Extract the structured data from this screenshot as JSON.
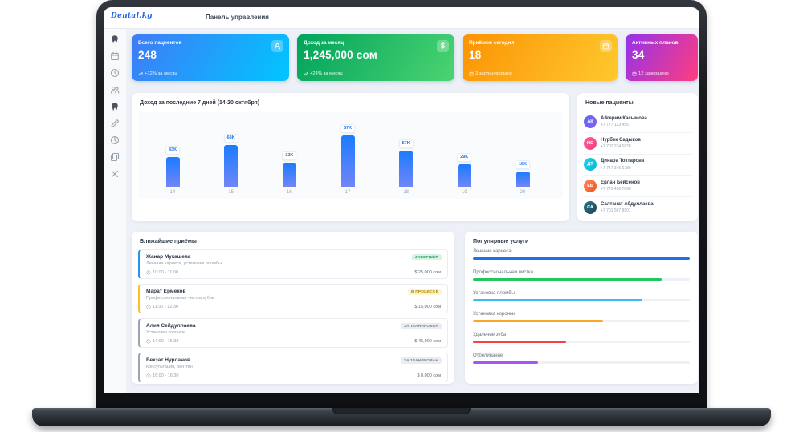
{
  "header": {
    "logo": "Dental.kg",
    "title": "Панель управления"
  },
  "sidebar": {
    "icons": [
      {
        "glyph": "tooth",
        "active": true
      },
      {
        "glyph": "calendar",
        "active": false
      },
      {
        "glyph": "clock",
        "active": false
      },
      {
        "glyph": "users",
        "active": false
      },
      {
        "glyph": "tooth",
        "active": true
      },
      {
        "glyph": "pen",
        "active": false
      },
      {
        "glyph": "pie-chart",
        "active": false
      },
      {
        "glyph": "copy",
        "active": false
      },
      {
        "glyph": "close",
        "active": false
      }
    ]
  },
  "stats": [
    {
      "label": "Всего пациентов",
      "value": "248",
      "delta": "+12% за месяц",
      "delta_icon": "trend-up",
      "icon": "person",
      "gradient": [
        "#3f7bf6",
        "#00c6ff"
      ]
    },
    {
      "label": "Доход за месяц",
      "value": "1,245,000 сом",
      "delta": "+24% за месяц",
      "delta_icon": "trend-up",
      "icon": "dollar",
      "gradient": [
        "#00a35c",
        "#4cd471"
      ]
    },
    {
      "label": "Приёмов сегодня",
      "value": "18",
      "delta": "3 запланировано",
      "delta_icon": "calendar",
      "icon": "calendar",
      "gradient": [
        "#fb9304",
        "#ffc92e"
      ]
    },
    {
      "label": "Активных планов",
      "value": "34",
      "delta": "12 завершено",
      "delta_icon": "calendar",
      "icon": null,
      "gradient": [
        "#9333ea",
        "#ff3d7f"
      ]
    }
  ],
  "chart_data": {
    "type": "bar",
    "title": "Доход за последние 7 дней (14-20 октября)",
    "categories": [
      "14",
      "15",
      "16",
      "17",
      "18",
      "19",
      "20"
    ],
    "values": [
      43000,
      68000,
      32000,
      87000,
      57000,
      29000,
      15000
    ],
    "labels": [
      "43K",
      "68K",
      "32K",
      "87K",
      "57K",
      "29K",
      "15K"
    ],
    "xlabel": "",
    "ylabel": "",
    "ylim": [
      0,
      87000
    ],
    "grid": false,
    "legend": false,
    "bar_color": "#1b7bff"
  },
  "patients": {
    "title": "Новые пациенты",
    "items": [
      {
        "initials": "АК",
        "name": "Айгерим Касымова",
        "phone": "+7 777 123 4567",
        "color1": "#5b6cf0",
        "color2": "#8a5cf6"
      },
      {
        "initials": "НС",
        "name": "Нурбек Садыков",
        "phone": "+7 707 234 5678",
        "color1": "#ff5e9c",
        "color2": "#f43f7f"
      },
      {
        "initials": "ДТ",
        "name": "Динара Токтарова",
        "phone": "+7 747 345 6789",
        "color1": "#22d3ee",
        "color2": "#06b6d4"
      },
      {
        "initials": "ЕБ",
        "name": "Ерлан Бейсенов",
        "phone": "+7 775 456 7890",
        "color1": "#ff8a5c",
        "color2": "#f4511e"
      },
      {
        "initials": "СА",
        "name": "Салтанат Абдуллаева",
        "phone": "+7 701 567 8901",
        "color1": "#1f7a8c",
        "color2": "#2c3e50"
      }
    ]
  },
  "appointments": {
    "title": "Ближайшие приёмы",
    "items": [
      {
        "name": "Жанар Мукашева",
        "service": "Лечение кариеса, установка пломбы",
        "time": "10:00 - 11:00",
        "price": "$ 25,000 сом",
        "status": "ЗАВЕРШЁН",
        "status_type": "done",
        "accent": "#2196f3"
      },
      {
        "name": "Марат Ермеков",
        "service": "Профессиональная чистка зубов",
        "time": "11:30 - 12:30",
        "price": "$ 15,000 сом",
        "status": "В ПРОЦЕССЕ",
        "status_type": "progress",
        "accent": "#fbbf24"
      },
      {
        "name": "Алия Сейдуллаева",
        "service": "Установка коронки",
        "time": "14:00 - 15:30",
        "price": "$ 45,000 сом",
        "status": "ЗАПЛАНИРОВАН",
        "status_type": "planned",
        "accent": "#9aa5b1"
      },
      {
        "name": "Бекзат Нурланов",
        "service": "Консультация, рентген",
        "time": "16:00 - 16:30",
        "price": "$ 8,000 сом",
        "status": "ЗАПЛАНИРОВАН",
        "status_type": "planned",
        "accent": "#9aa5b1"
      }
    ]
  },
  "services": {
    "title": "Популярные услуги",
    "items": [
      {
        "label": "Лечение кариеса",
        "percent": 100,
        "color": "#1a73e8"
      },
      {
        "label": "Профессиональная чистка",
        "percent": 87,
        "color": "#22c55e"
      },
      {
        "label": "Установка пломбы",
        "percent": 78,
        "color": "#38bdf8"
      },
      {
        "label": "Установка коронки",
        "percent": 60,
        "color": "#f9a825"
      },
      {
        "label": "Удаление зуба",
        "percent": 43,
        "color": "#ef4444"
      },
      {
        "label": "Отбеливание",
        "percent": 30,
        "color": "#a855f7"
      }
    ]
  },
  "status_colors": {
    "done": {
      "bg": "#d7f3e3",
      "fg": "#1d9e5f"
    },
    "progress": {
      "bg": "#fcf3cf",
      "fg": "#b08900"
    },
    "planned": {
      "bg": "#e9edf2",
      "fg": "#7b8794"
    }
  }
}
